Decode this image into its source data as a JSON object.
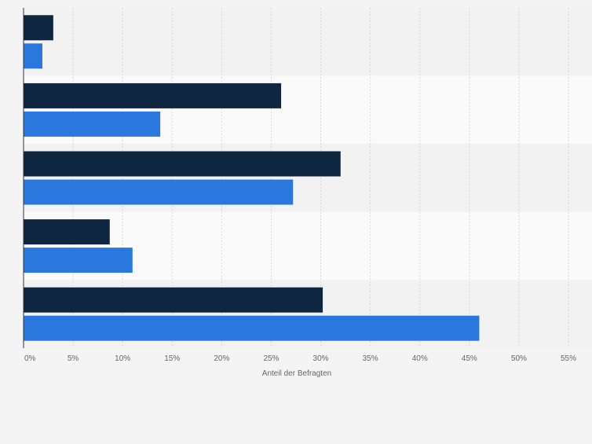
{
  "chart_data": {
    "type": "bar",
    "orientation": "horizontal",
    "categories": [
      "",
      "",
      "",
      "",
      ""
    ],
    "series": [
      {
        "color": "#0f2640",
        "values": [
          3.0,
          26.0,
          32.0,
          8.7,
          30.2
        ]
      },
      {
        "color": "#2a78de",
        "values": [
          1.9,
          13.8,
          27.2,
          11.0,
          46.0
        ]
      }
    ],
    "xlabel": "Anteil der Befragten",
    "xlim": [
      0,
      55
    ],
    "ticks": [
      "0%",
      "5%",
      "10%",
      "15%",
      "20%",
      "25%",
      "30%",
      "35%",
      "40%",
      "45%",
      "50%",
      "55%"
    ],
    "grid": true,
    "legend": "none"
  }
}
